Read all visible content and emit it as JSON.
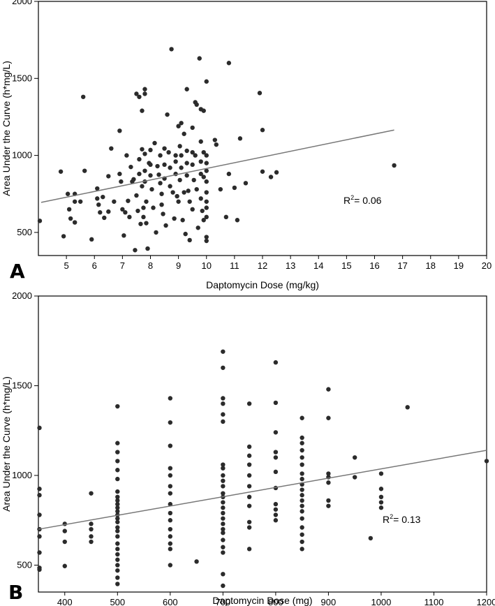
{
  "chart_data": [
    {
      "type": "scatter",
      "panel": "A",
      "xlabel": "Daptomycin Dose (mg/kg)",
      "ylabel": "Area Under the Curve (h*mg/L)",
      "xlim": [
        4,
        20
      ],
      "ylim": [
        350,
        2000
      ],
      "xticks": [
        5,
        6,
        7,
        8,
        9,
        10,
        11,
        12,
        13,
        14,
        15,
        16,
        17,
        18,
        19,
        20
      ],
      "yticks": [
        500,
        1000,
        1500,
        2000
      ],
      "annotation": {
        "base": "R",
        "sup": "2",
        "text": "= 0.06"
      },
      "trendline": {
        "x": [
          4.1,
          16.7
        ],
        "y": [
          695,
          1165
        ]
      },
      "points": [
        [
          4.05,
          575
        ],
        [
          4.8,
          895
        ],
        [
          4.9,
          475
        ],
        [
          5.05,
          750
        ],
        [
          5.1,
          650
        ],
        [
          5.15,
          590
        ],
        [
          5.3,
          700
        ],
        [
          5.3,
          750
        ],
        [
          5.3,
          565
        ],
        [
          5.5,
          700
        ],
        [
          5.6,
          1380
        ],
        [
          5.65,
          900
        ],
        [
          5.9,
          455
        ],
        [
          6.1,
          785
        ],
        [
          6.1,
          720
        ],
        [
          6.15,
          680
        ],
        [
          6.2,
          630
        ],
        [
          6.3,
          730
        ],
        [
          6.35,
          595
        ],
        [
          6.5,
          865
        ],
        [
          6.5,
          635
        ],
        [
          6.6,
          1045
        ],
        [
          6.7,
          700
        ],
        [
          6.9,
          1160
        ],
        [
          6.9,
          880
        ],
        [
          6.95,
          830
        ],
        [
          7.0,
          650
        ],
        [
          7.05,
          480
        ],
        [
          7.1,
          630
        ],
        [
          7.15,
          1000
        ],
        [
          7.2,
          705
        ],
        [
          7.25,
          600
        ],
        [
          7.3,
          925
        ],
        [
          7.35,
          830
        ],
        [
          7.4,
          845
        ],
        [
          7.45,
          385
        ],
        [
          7.5,
          1400
        ],
        [
          7.5,
          740
        ],
        [
          7.55,
          640
        ],
        [
          7.6,
          1380
        ],
        [
          7.6,
          975
        ],
        [
          7.6,
          880
        ],
        [
          7.65,
          555
        ],
        [
          7.7,
          1290
        ],
        [
          7.7,
          1040
        ],
        [
          7.7,
          800
        ],
        [
          7.75,
          660
        ],
        [
          7.75,
          600
        ],
        [
          7.8,
          1430
        ],
        [
          7.8,
          1400
        ],
        [
          7.8,
          1010
        ],
        [
          7.8,
          900
        ],
        [
          7.8,
          830
        ],
        [
          7.85,
          700
        ],
        [
          7.85,
          560
        ],
        [
          7.9,
          395
        ],
        [
          7.95,
          950
        ],
        [
          8.0,
          1035
        ],
        [
          8.0,
          940
        ],
        [
          8.0,
          870
        ],
        [
          8.05,
          780
        ],
        [
          8.1,
          660
        ],
        [
          8.15,
          1080
        ],
        [
          8.2,
          500
        ],
        [
          8.25,
          930
        ],
        [
          8.3,
          875
        ],
        [
          8.35,
          1000
        ],
        [
          8.35,
          820
        ],
        [
          8.4,
          750
        ],
        [
          8.4,
          680
        ],
        [
          8.45,
          620
        ],
        [
          8.5,
          1045
        ],
        [
          8.5,
          940
        ],
        [
          8.5,
          850
        ],
        [
          8.55,
          545
        ],
        [
          8.6,
          1265
        ],
        [
          8.65,
          1020
        ],
        [
          8.7,
          920
        ],
        [
          8.7,
          800
        ],
        [
          8.75,
          1690
        ],
        [
          8.8,
          760
        ],
        [
          8.85,
          590
        ],
        [
          8.9,
          1000
        ],
        [
          8.9,
          960
        ],
        [
          8.9,
          880
        ],
        [
          8.95,
          735
        ],
        [
          9.0,
          1190
        ],
        [
          9.0,
          700
        ],
        [
          9.05,
          1060
        ],
        [
          9.05,
          840
        ],
        [
          9.1,
          1210
        ],
        [
          9.1,
          1000
        ],
        [
          9.1,
          920
        ],
        [
          9.15,
          580
        ],
        [
          9.2,
          1140
        ],
        [
          9.2,
          760
        ],
        [
          9.25,
          490
        ],
        [
          9.3,
          1430
        ],
        [
          9.3,
          1030
        ],
        [
          9.3,
          950
        ],
        [
          9.3,
          870
        ],
        [
          9.35,
          770
        ],
        [
          9.4,
          700
        ],
        [
          9.4,
          450
        ],
        [
          9.5,
          1180
        ],
        [
          9.5,
          1020
        ],
        [
          9.5,
          940
        ],
        [
          9.5,
          650
        ],
        [
          9.55,
          840
        ],
        [
          9.6,
          1345
        ],
        [
          9.6,
          1000
        ],
        [
          9.65,
          1330
        ],
        [
          9.65,
          780
        ],
        [
          9.7,
          530
        ],
        [
          9.75,
          1630
        ],
        [
          9.8,
          1300
        ],
        [
          9.8,
          1090
        ],
        [
          9.8,
          960
        ],
        [
          9.8,
          880
        ],
        [
          9.8,
          720
        ],
        [
          9.85,
          640
        ],
        [
          9.9,
          1290
        ],
        [
          9.9,
          1020
        ],
        [
          9.9,
          860
        ],
        [
          9.9,
          580
        ],
        [
          10.0,
          1480
        ],
        [
          10.0,
          1000
        ],
        [
          10.0,
          950
        ],
        [
          10.0,
          900
        ],
        [
          10.0,
          830
        ],
        [
          10.0,
          760
        ],
        [
          10.0,
          700
        ],
        [
          10.0,
          660
        ],
        [
          10.0,
          600
        ],
        [
          10.0,
          470
        ],
        [
          10.0,
          445
        ],
        [
          10.3,
          1100
        ],
        [
          10.35,
          1070
        ],
        [
          10.5,
          780
        ],
        [
          10.7,
          600
        ],
        [
          10.8,
          1600
        ],
        [
          10.8,
          880
        ],
        [
          11.0,
          790
        ],
        [
          11.1,
          580
        ],
        [
          11.2,
          1110
        ],
        [
          11.4,
          820
        ],
        [
          11.9,
          1405
        ],
        [
          12.0,
          1165
        ],
        [
          12.0,
          895
        ],
        [
          12.3,
          860
        ],
        [
          12.5,
          890
        ],
        [
          16.7,
          935
        ]
      ]
    },
    {
      "type": "scatter",
      "panel": "B",
      "xlabel": "Daptomycin Dose (mg)",
      "ylabel": "Area Under the Curve (h*mg/L)",
      "xlim": [
        350,
        1200
      ],
      "ylim": [
        350,
        2000
      ],
      "xticks": [
        400,
        500,
        600,
        700,
        800,
        900,
        1000,
        1100,
        1200
      ],
      "yticks": [
        500,
        1000,
        1500,
        2000
      ],
      "annotation": {
        "base": "R",
        "sup": "2",
        "text": "= 0.13"
      },
      "trendline": {
        "x": [
          350,
          1200
        ],
        "y": [
          700,
          1140
        ]
      },
      "points": [
        [
          352,
          1265
        ],
        [
          352,
          925
        ],
        [
          352,
          890
        ],
        [
          352,
          780
        ],
        [
          352,
          700
        ],
        [
          352,
          660
        ],
        [
          352,
          570
        ],
        [
          352,
          485
        ],
        [
          352,
          475
        ],
        [
          400,
          730
        ],
        [
          400,
          690
        ],
        [
          400,
          630
        ],
        [
          400,
          495
        ],
        [
          450,
          900
        ],
        [
          450,
          730
        ],
        [
          450,
          700
        ],
        [
          450,
          660
        ],
        [
          450,
          630
        ],
        [
          500,
          1385
        ],
        [
          500,
          1180
        ],
        [
          500,
          1130
        ],
        [
          500,
          1080
        ],
        [
          500,
          1030
        ],
        [
          500,
          980
        ],
        [
          500,
          910
        ],
        [
          500,
          880
        ],
        [
          500,
          860
        ],
        [
          500,
          840
        ],
        [
          500,
          820
        ],
        [
          500,
          800
        ],
        [
          500,
          780
        ],
        [
          500,
          760
        ],
        [
          500,
          740
        ],
        [
          500,
          710
        ],
        [
          500,
          690
        ],
        [
          500,
          660
        ],
        [
          500,
          620
        ],
        [
          500,
          590
        ],
        [
          500,
          560
        ],
        [
          500,
          530
        ],
        [
          500,
          500
        ],
        [
          500,
          470
        ],
        [
          500,
          430
        ],
        [
          500,
          395
        ],
        [
          600,
          1430
        ],
        [
          600,
          1295
        ],
        [
          600,
          1165
        ],
        [
          600,
          1040
        ],
        [
          600,
          1000
        ],
        [
          600,
          940
        ],
        [
          600,
          900
        ],
        [
          600,
          840
        ],
        [
          600,
          790
        ],
        [
          600,
          750
        ],
        [
          600,
          700
        ],
        [
          600,
          660
        ],
        [
          600,
          620
        ],
        [
          600,
          590
        ],
        [
          600,
          500
        ],
        [
          650,
          520
        ],
        [
          700,
          1690
        ],
        [
          700,
          1600
        ],
        [
          700,
          1430
        ],
        [
          700,
          1400
        ],
        [
          700,
          1340
        ],
        [
          700,
          1300
        ],
        [
          700,
          1060
        ],
        [
          700,
          1040
        ],
        [
          700,
          1000
        ],
        [
          700,
          970
        ],
        [
          700,
          940
        ],
        [
          700,
          900
        ],
        [
          700,
          880
        ],
        [
          700,
          850
        ],
        [
          700,
          820
        ],
        [
          700,
          790
        ],
        [
          700,
          760
        ],
        [
          700,
          730
        ],
        [
          700,
          700
        ],
        [
          700,
          680
        ],
        [
          700,
          640
        ],
        [
          700,
          600
        ],
        [
          700,
          570
        ],
        [
          700,
          450
        ],
        [
          700,
          385
        ],
        [
          750,
          1400
        ],
        [
          750,
          1160
        ],
        [
          750,
          1110
        ],
        [
          750,
          1060
        ],
        [
          750,
          1000
        ],
        [
          750,
          940
        ],
        [
          750,
          880
        ],
        [
          750,
          830
        ],
        [
          750,
          740
        ],
        [
          750,
          710
        ],
        [
          750,
          590
        ],
        [
          800,
          1630
        ],
        [
          800,
          1405
        ],
        [
          800,
          1240
        ],
        [
          800,
          1130
        ],
        [
          800,
          1100
        ],
        [
          800,
          1020
        ],
        [
          800,
          930
        ],
        [
          800,
          840
        ],
        [
          800,
          810
        ],
        [
          800,
          780
        ],
        [
          800,
          750
        ],
        [
          850,
          1320
        ],
        [
          850,
          1210
        ],
        [
          850,
          1180
        ],
        [
          850,
          1140
        ],
        [
          850,
          1100
        ],
        [
          850,
          1060
        ],
        [
          850,
          1010
        ],
        [
          850,
          980
        ],
        [
          850,
          950
        ],
        [
          850,
          920
        ],
        [
          850,
          890
        ],
        [
          850,
          860
        ],
        [
          850,
          830
        ],
        [
          850,
          800
        ],
        [
          850,
          760
        ],
        [
          850,
          710
        ],
        [
          850,
          670
        ],
        [
          850,
          630
        ],
        [
          850,
          590
        ],
        [
          900,
          1480
        ],
        [
          900,
          1320
        ],
        [
          900,
          1010
        ],
        [
          900,
          990
        ],
        [
          900,
          960
        ],
        [
          900,
          860
        ],
        [
          900,
          830
        ],
        [
          950,
          1100
        ],
        [
          950,
          990
        ],
        [
          980,
          650
        ],
        [
          1000,
          1010
        ],
        [
          1000,
          925
        ],
        [
          1000,
          880
        ],
        [
          1000,
          850
        ],
        [
          1000,
          820
        ],
        [
          1050,
          1380
        ],
        [
          1200,
          1080
        ]
      ]
    }
  ]
}
